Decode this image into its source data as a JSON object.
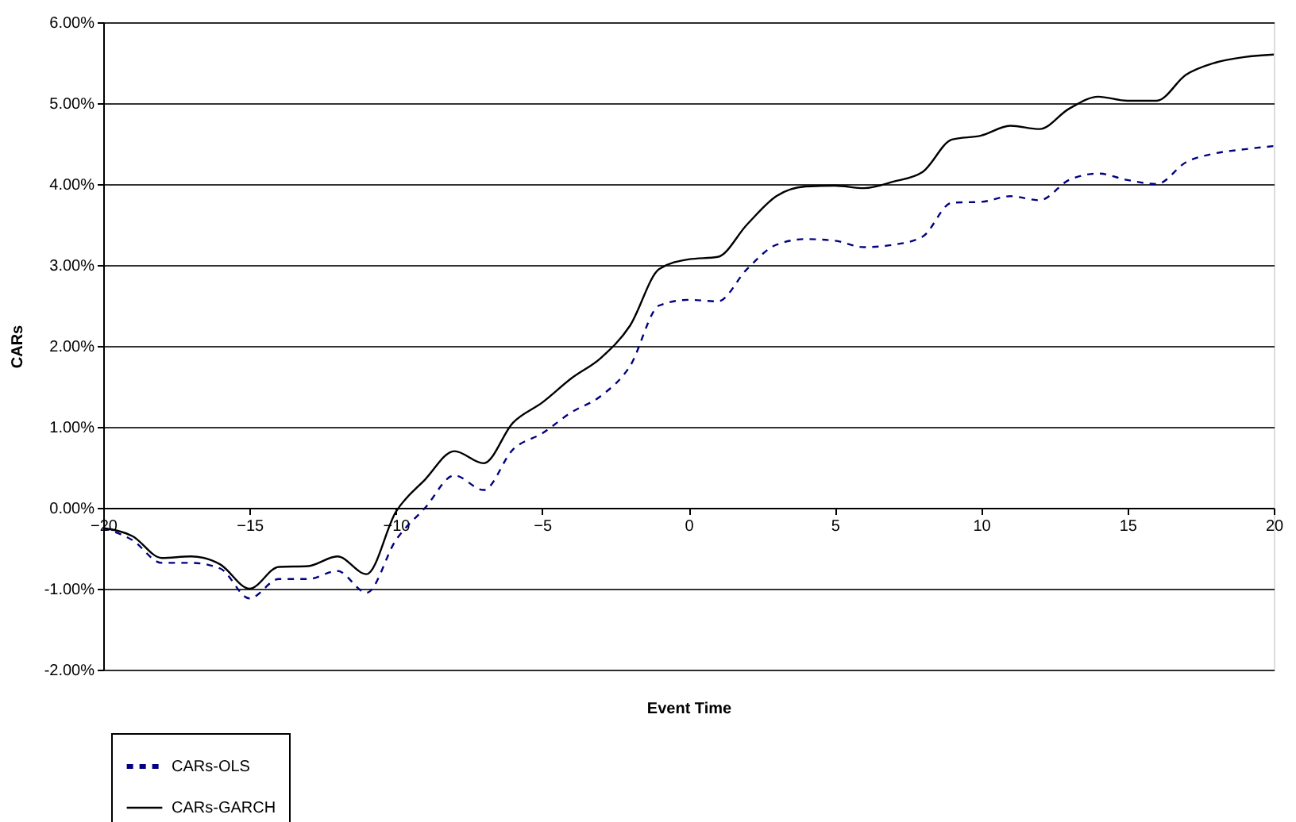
{
  "chart_data": {
    "type": "line",
    "xlabel": "Event Time",
    "ylabel": "CARs",
    "x": [
      -20,
      -19,
      -18,
      -17,
      -16,
      -15,
      -14,
      -13,
      -12,
      -11,
      -10,
      -9,
      -8,
      -7,
      -6,
      -5,
      -4,
      -3,
      -2,
      -1,
      0,
      1,
      2,
      3,
      4,
      5,
      6,
      7,
      8,
      9,
      10,
      11,
      12,
      13,
      14,
      15,
      16,
      17,
      18,
      19,
      20
    ],
    "series": [
      {
        "name": "CARs-OLS",
        "color": "#000080",
        "line_style": "dashed",
        "values": [
          -0.25,
          -0.4,
          -0.68,
          -0.68,
          -0.75,
          -1.12,
          -0.88,
          -0.88,
          -0.78,
          -1.05,
          -0.4,
          0.0,
          0.4,
          0.22,
          0.72,
          0.92,
          1.18,
          1.38,
          1.75,
          2.5,
          2.57,
          2.55,
          2.95,
          3.25,
          3.32,
          3.3,
          3.22,
          3.25,
          3.35,
          3.77,
          3.78,
          3.85,
          3.8,
          4.05,
          4.13,
          4.05,
          4.0,
          4.27,
          4.38,
          4.43,
          4.47
        ]
      },
      {
        "name": "CARs-GARCH",
        "color": "#000000",
        "line_style": "solid",
        "values": [
          -0.25,
          -0.35,
          -0.62,
          -0.6,
          -0.7,
          -1.0,
          -0.73,
          -0.72,
          -0.6,
          -0.82,
          -0.05,
          0.35,
          0.7,
          0.55,
          1.05,
          1.3,
          1.6,
          1.85,
          2.25,
          2.95,
          3.07,
          3.1,
          3.5,
          3.85,
          3.97,
          3.98,
          3.95,
          4.03,
          4.15,
          4.55,
          4.6,
          4.72,
          4.68,
          4.93,
          5.08,
          5.03,
          5.03,
          5.35,
          5.5,
          5.57,
          5.6
        ]
      }
    ],
    "xlim": [
      -20,
      20
    ],
    "xticks": [
      -20,
      -15,
      -10,
      -5,
      0,
      5,
      10,
      15,
      20
    ],
    "ylim": [
      -2,
      6
    ],
    "yticks": [
      {
        "value": -2,
        "label": "-2.00%"
      },
      {
        "value": -1,
        "label": "-1.00%"
      },
      {
        "value": 0,
        "label": "0.00%"
      },
      {
        "value": 1,
        "label": "1.00%"
      },
      {
        "value": 2,
        "label": "2.00%"
      },
      {
        "value": 3,
        "label": "3.00%"
      },
      {
        "value": 4,
        "label": "4.00%"
      },
      {
        "value": 5,
        "label": "5.00%"
      },
      {
        "value": 6,
        "label": "6.00%"
      }
    ],
    "grid": "y",
    "legend": "bottom left"
  }
}
